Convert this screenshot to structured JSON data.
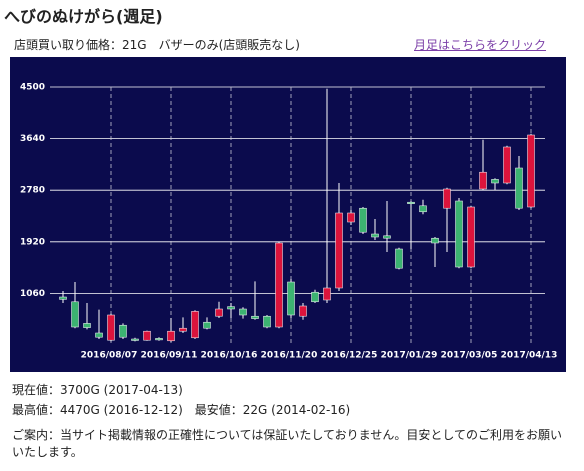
{
  "page": {
    "title": "へびのぬけがら(週足)",
    "price_info": "店頭買い取り価格：21G　バザーのみ(店頭販売なし)",
    "link": "月足はこちらをクリック",
    "current": "現在値：3700G (2017-04-13)",
    "high_low": "最高値：4470G (2016-12-12)　最安値：22G (2014-02-16)",
    "notice": "ご案内：当サイト掲載情報の正確性については保証いたしておりません。目安としてのご利用をお願いいたします。"
  },
  "chart_data": {
    "type": "candlestick",
    "categories": [
      null,
      null,
      null,
      null,
      "2016/08/07",
      null,
      null,
      null,
      null,
      "2016/09/11",
      null,
      null,
      null,
      null,
      "2016/10/16",
      null,
      null,
      null,
      null,
      "2016/11/20",
      null,
      null,
      null,
      null,
      "2016/12/25",
      null,
      null,
      null,
      null,
      "2017/01/29",
      null,
      null,
      null,
      null,
      "2017/03/05",
      null,
      null,
      null,
      null,
      "2017/04/13"
    ],
    "open": [
      1000,
      920,
      560,
      400,
      280,
      530,
      300,
      280,
      310,
      270,
      430,
      320,
      580,
      680,
      840,
      800,
      680,
      680,
      500,
      1250,
      680,
      1080,
      950,
      1150,
      2250,
      2480,
      2050,
      2020,
      1800,
      2580,
      2520,
      1980,
      2480,
      2600,
      1500,
      2800,
      2960,
      2900,
      3150,
      2500
    ],
    "high": [
      1100,
      1250,
      900,
      790,
      720,
      560,
      320,
      440,
      330,
      650,
      660,
      780,
      660,
      920,
      900,
      830,
      1260,
      700,
      1920,
      1300,
      900,
      1120,
      4470,
      2900,
      2450,
      2500,
      2300,
      2600,
      1820,
      2600,
      2620,
      2000,
      2820,
      2650,
      2520,
      3620,
      2980,
      3520,
      3350,
      3720
    ],
    "low": [
      900,
      480,
      460,
      300,
      260,
      300,
      260,
      270,
      270,
      250,
      400,
      300,
      460,
      650,
      650,
      640,
      620,
      480,
      480,
      650,
      620,
      900,
      900,
      1100,
      2200,
      2050,
      1950,
      1750,
      1460,
      1800,
      2380,
      1500,
      1750,
      1480,
      1480,
      2780,
      2780,
      2880,
      2450,
      2480
    ],
    "close": [
      960,
      500,
      490,
      330,
      700,
      330,
      280,
      430,
      290,
      430,
      480,
      760,
      480,
      800,
      800,
      700,
      640,
      500,
      1900,
      700,
      850,
      920,
      1150,
      2400,
      2400,
      2080,
      2000,
      1980,
      1480,
      2560,
      2420,
      1900,
      2800,
      1500,
      2500,
      3080,
      2900,
      3500,
      2480,
      3700
    ],
    "up_color": "#dc143c",
    "down_color": "#3cb371",
    "ylim": [
      200,
      4500
    ],
    "yticks": [
      1060,
      1920,
      2780,
      3640,
      4500
    ],
    "grid": true
  }
}
